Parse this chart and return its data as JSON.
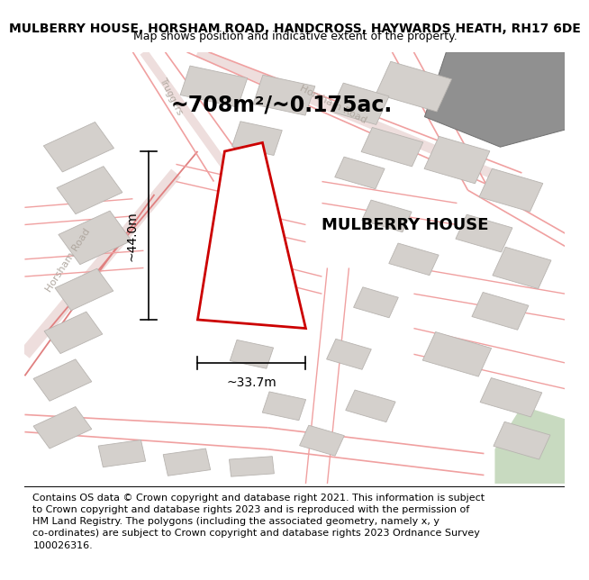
{
  "title": "MULBERRY HOUSE, HORSHAM ROAD, HANDCROSS, HAYWARDS HEATH, RH17 6DE",
  "subtitle": "Map shows position and indicative extent of the property.",
  "area_label": "~708m²/~0.175ac.",
  "property_name": "MULBERRY HOUSE",
  "dim_vertical": "~44.0m",
  "dim_horizontal": "~33.7m",
  "footer": "Contains OS data © Crown copyright and database right 2021. This information is subject\nto Crown copyright and database rights 2023 and is reproduced with the permission of\nHM Land Registry. The polygons (including the associated geometry, namely x, y\nco-ordinates) are subject to Crown copyright and database rights 2023 Ordnance Survey\n100026316.",
  "map_bg": "#f7f3ef",
  "road_color": "#f0a0a0",
  "road_color2": "#e08080",
  "building_color": "#d4d0cc",
  "building_edge": "#b8b4b0",
  "green_color": "#c8dac0",
  "green_color2": "#b8c8b0",
  "dark_shape_color": "#a0a0a0",
  "property_outline_color": "#cc0000",
  "property_fill": "#ffffff",
  "title_fontsize": 10,
  "subtitle_fontsize": 9,
  "area_fontsize": 17,
  "property_name_fontsize": 13,
  "dim_fontsize": 10,
  "footer_fontsize": 8,
  "road_label_color": "#b0a8a0",
  "road_label_size": 8
}
